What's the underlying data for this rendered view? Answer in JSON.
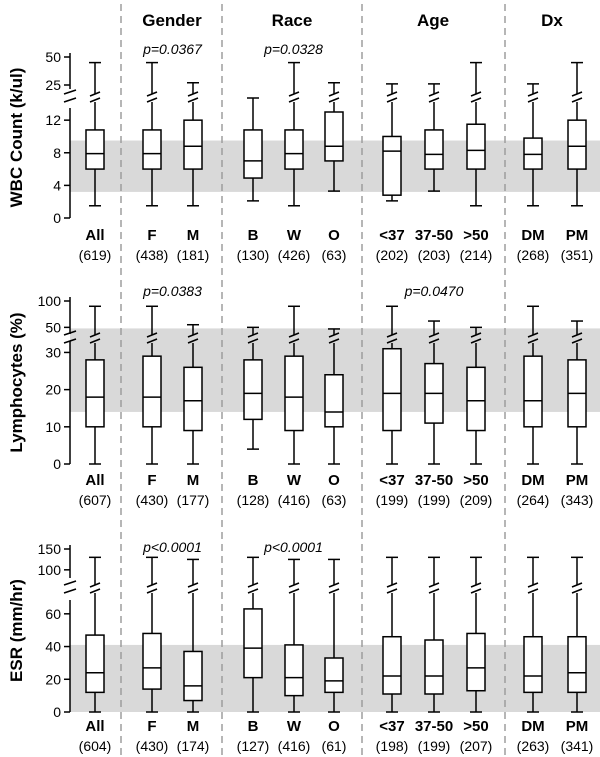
{
  "group_titles": [
    "Gender",
    "Race",
    "Age",
    "Dx"
  ],
  "colors": {
    "reference_band": "#d9d9d9",
    "divider": "#9e9e9e",
    "box_stroke": "#000000",
    "box_fill": "#ffffff"
  },
  "chart_data": [
    {
      "type": "boxplot",
      "ylabel": "WBC Count (k/ul)",
      "axis_break": {
        "lower_range": [
          0,
          13
        ],
        "upper_range": [
          25,
          50
        ],
        "break_between": [
          13,
          25
        ]
      },
      "yticks_lower": [
        0,
        4,
        8,
        12
      ],
      "yticks_upper": [
        25,
        50
      ],
      "reference_band": [
        3.2,
        9.5
      ],
      "categories": [
        "All",
        "F",
        "M",
        "B",
        "W",
        "O",
        "<37",
        "37-50",
        ">50",
        "DM",
        "PM"
      ],
      "n": [
        "(619)",
        "(438)",
        "(181)",
        "(130)",
        "(426)",
        "(63)",
        "(202)",
        "(203)",
        "(214)",
        "(268)",
        "(351)"
      ],
      "boxes": [
        {
          "min": 1.5,
          "q1": 6.0,
          "median": 7.9,
          "q3": 10.8,
          "max": 45
        },
        {
          "min": 1.5,
          "q1": 6.0,
          "median": 7.9,
          "q3": 10.8,
          "max": 45
        },
        {
          "min": 1.5,
          "q1": 6.0,
          "median": 8.8,
          "q3": 12.0,
          "max": 27
        },
        {
          "min": 2.1,
          "q1": 4.9,
          "median": 7.0,
          "q3": 10.8,
          "max": 23
        },
        {
          "min": 1.5,
          "q1": 6.0,
          "median": 7.9,
          "q3": 10.8,
          "max": 45
        },
        {
          "min": 3.3,
          "q1": 7.0,
          "median": 8.8,
          "q3": 13.0,
          "max": 27
        },
        {
          "min": 2.1,
          "q1": 2.8,
          "median": 8.2,
          "q3": 10.0,
          "max": 26
        },
        {
          "min": 3.3,
          "q1": 6.0,
          "median": 7.8,
          "q3": 10.8,
          "max": 26
        },
        {
          "min": 1.5,
          "q1": 6.0,
          "median": 8.3,
          "q3": 11.5,
          "max": 45
        },
        {
          "min": 1.5,
          "q1": 6.0,
          "median": 7.8,
          "q3": 9.8,
          "max": 26
        },
        {
          "min": 1.5,
          "q1": 6.0,
          "median": 8.8,
          "q3": 12.0,
          "max": 45
        }
      ],
      "annotations": [
        {
          "text": "p=0.0367",
          "between": [
            1,
            2
          ]
        },
        {
          "text": "p=0.0328",
          "between": [
            3,
            5
          ]
        }
      ]
    },
    {
      "type": "boxplot",
      "ylabel": "Lymphocytes (%)",
      "axis_break": {
        "lower_range": [
          0,
          32
        ],
        "upper_range": [
          45,
          100
        ],
        "break_between": [
          32,
          45
        ]
      },
      "yticks_lower": [
        0,
        10,
        20,
        30
      ],
      "yticks_upper": [
        50,
        100
      ],
      "reference_band": [
        14,
        48
      ],
      "categories": [
        "All",
        "F",
        "M",
        "B",
        "W",
        "O",
        "<37",
        "37-50",
        ">50",
        "DM",
        "PM"
      ],
      "n": [
        "(607)",
        "(430)",
        "(177)",
        "(128)",
        "(416)",
        "(63)",
        "(199)",
        "(199)",
        "(209)",
        "(264)",
        "(343)"
      ],
      "boxes": [
        {
          "min": 0,
          "q1": 10,
          "median": 18,
          "q3": 28,
          "max": 90
        },
        {
          "min": 0,
          "q1": 10,
          "median": 18,
          "q3": 29,
          "max": 90
        },
        {
          "min": 0,
          "q1": 9,
          "median": 17,
          "q3": 26,
          "max": 55
        },
        {
          "min": 4,
          "q1": 12,
          "median": 19,
          "q3": 28,
          "max": 50
        },
        {
          "min": 0,
          "q1": 9,
          "median": 18,
          "q3": 29,
          "max": 90
        },
        {
          "min": 0,
          "q1": 10,
          "median": 14,
          "q3": 24,
          "max": 47
        },
        {
          "min": 0,
          "q1": 9,
          "median": 19,
          "q3": 31,
          "max": 90
        },
        {
          "min": 0,
          "q1": 11,
          "median": 19,
          "q3": 27,
          "max": 62
        },
        {
          "min": 0,
          "q1": 9,
          "median": 17,
          "q3": 26,
          "max": 50
        },
        {
          "min": 0,
          "q1": 10,
          "median": 17,
          "q3": 29,
          "max": 90
        },
        {
          "min": 0,
          "q1": 10,
          "median": 19,
          "q3": 28,
          "max": 62
        }
      ],
      "annotations": [
        {
          "text": "p=0.0383",
          "between": [
            1,
            2
          ]
        },
        {
          "text": "p=0.0470",
          "between": [
            6,
            8
          ]
        }
      ]
    },
    {
      "type": "boxplot",
      "ylabel": "ESR (mm/hr)",
      "axis_break": {
        "lower_range": [
          0,
          66
        ],
        "upper_range": [
          90,
          150
        ],
        "break_between": [
          66,
          90
        ]
      },
      "yticks_lower": [
        0,
        20,
        40,
        60
      ],
      "yticks_upper": [
        100,
        150
      ],
      "reference_band": [
        0,
        41
      ],
      "categories": [
        "All",
        "F",
        "M",
        "B",
        "W",
        "O",
        "<37",
        "37-50",
        ">50",
        "DM",
        "PM"
      ],
      "n": [
        "(604)",
        "(430)",
        "(174)",
        "(127)",
        "(416)",
        "(61)",
        "(198)",
        "(199)",
        "(207)",
        "(263)",
        "(341)"
      ],
      "boxes": [
        {
          "min": 0,
          "q1": 12,
          "median": 24,
          "q3": 47,
          "max": 130
        },
        {
          "min": 0,
          "q1": 14,
          "median": 27,
          "q3": 48,
          "max": 130
        },
        {
          "min": 0,
          "q1": 7,
          "median": 16,
          "q3": 37,
          "max": 125
        },
        {
          "min": 0,
          "q1": 21,
          "median": 39,
          "q3": 63,
          "max": 130
        },
        {
          "min": 0,
          "q1": 10,
          "median": 21,
          "q3": 41,
          "max": 125
        },
        {
          "min": 0,
          "q1": 12,
          "median": 19,
          "q3": 33,
          "max": 125
        },
        {
          "min": 0,
          "q1": 11,
          "median": 22,
          "q3": 46,
          "max": 130
        },
        {
          "min": 0,
          "q1": 11,
          "median": 22,
          "q3": 44,
          "max": 130
        },
        {
          "min": 0,
          "q1": 13,
          "median": 27,
          "q3": 48,
          "max": 130
        },
        {
          "min": 0,
          "q1": 12,
          "median": 22,
          "q3": 46,
          "max": 130
        },
        {
          "min": 0,
          "q1": 12,
          "median": 24,
          "q3": 46,
          "max": 130
        }
      ],
      "annotations": [
        {
          "text": "p<0.0001",
          "between": [
            1,
            2
          ]
        },
        {
          "text": "p<0.0001",
          "between": [
            3,
            5
          ]
        }
      ]
    }
  ]
}
